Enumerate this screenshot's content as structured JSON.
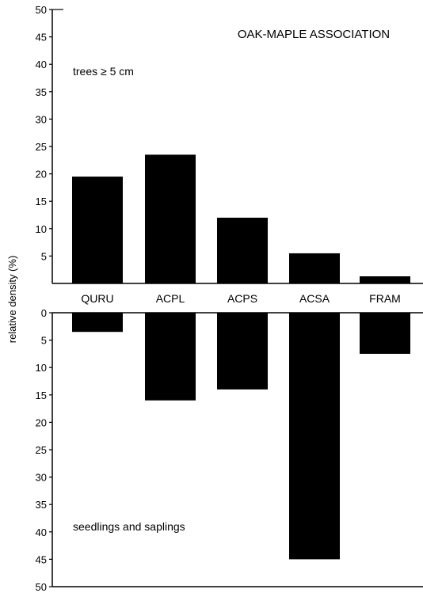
{
  "chart_data": {
    "type": "bar",
    "title": "OAK-MAPLE ASSOCIATION",
    "ylabel": "relative density (%)",
    "categories": [
      "QURU",
      "ACPL",
      "ACPS",
      "ACSA",
      "FRAM"
    ],
    "panels": [
      {
        "name": "trees ≥ 5 cm",
        "direction": "up",
        "ylim": [
          0,
          50
        ],
        "ticks": [
          "5",
          "10",
          "15",
          "20",
          "25",
          "30",
          "35",
          "40",
          "45",
          "50"
        ],
        "values": [
          19.5,
          23.5,
          12,
          5.5,
          1.3
        ]
      },
      {
        "name": "seedlings and saplings",
        "direction": "down",
        "ylim": [
          0,
          50
        ],
        "ticks": [
          "0",
          "5",
          "10",
          "15",
          "20",
          "25",
          "30",
          "35",
          "40",
          "45",
          "50"
        ],
        "values": [
          3.5,
          16,
          14,
          45,
          7.5
        ]
      }
    ],
    "bar_color": "#000000",
    "grid": false
  }
}
